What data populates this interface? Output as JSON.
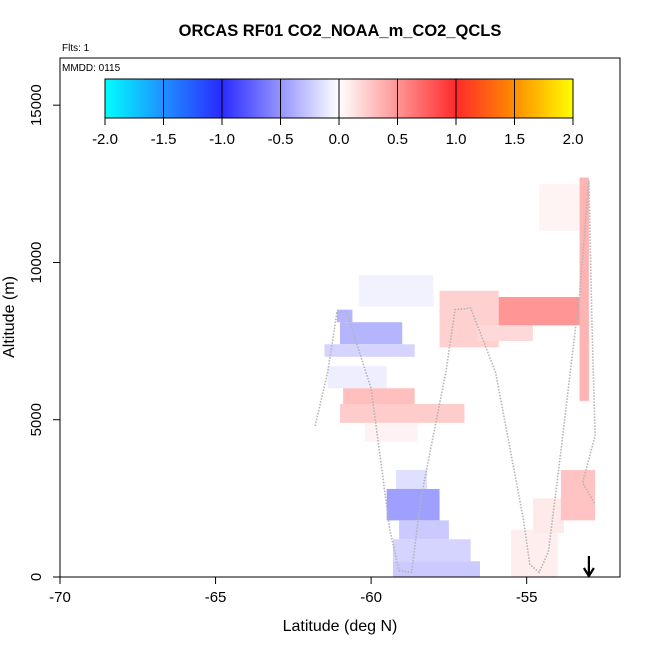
{
  "chart_data": {
    "type": "heatmap",
    "title": "ORCAS RF01 CO2_NOAA_m_CO2_QCLS",
    "annotations": [
      "Flts: 1",
      "MMDD: 0115"
    ],
    "xlabel": "Latitude (deg N)",
    "ylabel": "Altitude (m)",
    "xlim": [
      -70,
      -52
    ],
    "ylim": [
      0,
      16500
    ],
    "x_ticks": [
      -70,
      -65,
      -60,
      -55
    ],
    "x_tick_labels": [
      "-70",
      "-65",
      "-60",
      "-55"
    ],
    "y_ticks": [
      0,
      5000,
      10000,
      15000
    ],
    "y_tick_labels": [
      "0",
      "5000",
      "10000",
      "15000"
    ],
    "colorbar": {
      "range": [
        -2.0,
        2.0
      ],
      "tick_values": [
        -2.0,
        -1.5,
        -1.0,
        -0.5,
        0.0,
        0.5,
        1.0,
        1.5,
        2.0
      ],
      "tick_labels": [
        "-2.0",
        "-1.5",
        "-1.0",
        "-0.5",
        "0.0",
        "0.5",
        "1.0",
        "1.5",
        "2.0"
      ],
      "colors": [
        "#00ffff",
        "#1e90ff",
        "#2a2aff",
        "#ffffff",
        "#ff2a2a",
        "#ff8c00",
        "#ffff00"
      ],
      "placement": "top"
    },
    "flight_track_color": "#b4b4b4",
    "flight_track": [
      [
        -61.8,
        4800
      ],
      [
        -61.4,
        6500
      ],
      [
        -61.1,
        8400
      ],
      [
        -60.8,
        8450
      ],
      [
        -60.0,
        6000
      ],
      [
        -59.4,
        1500
      ],
      [
        -59.1,
        200
      ],
      [
        -58.7,
        150
      ],
      [
        -58.4,
        2500
      ],
      [
        -57.6,
        6500
      ],
      [
        -57.3,
        8500
      ],
      [
        -56.8,
        8550
      ],
      [
        -56.0,
        6500
      ],
      [
        -55.1,
        1800
      ],
      [
        -54.9,
        400
      ],
      [
        -54.6,
        150
      ],
      [
        -54.3,
        800
      ],
      [
        -53.9,
        4000
      ],
      [
        -53.3,
        9000
      ],
      [
        -53.0,
        12600
      ],
      [
        -52.9,
        8000
      ],
      [
        -52.8,
        4500
      ],
      [
        -53.2,
        3000
      ],
      [
        -52.8,
        2300
      ]
    ],
    "cells": [
      {
        "lat": [
          -57.8,
          -55.9
        ],
        "alt": [
          7300,
          9100
        ],
        "value": 0.22
      },
      {
        "lat": [
          -55.9,
          -53.2
        ],
        "alt": [
          8000,
          8900
        ],
        "value": 0.5
      },
      {
        "lat": [
          -56.6,
          -54.8
        ],
        "alt": [
          7500,
          8000
        ],
        "value": 0.18
      },
      {
        "lat": [
          -53.3,
          -53.0
        ],
        "alt": [
          5600,
          12700
        ],
        "value": 0.35
      },
      {
        "lat": [
          -54.6,
          -53.3
        ],
        "alt": [
          11000,
          12500
        ],
        "value": 0.05
      },
      {
        "lat": [
          -61.1,
          -60.6
        ],
        "alt": [
          8100,
          8500
        ],
        "value": -0.35
      },
      {
        "lat": [
          -61.0,
          -59.0
        ],
        "alt": [
          7400,
          8100
        ],
        "value": -0.35
      },
      {
        "lat": [
          -61.5,
          -58.6
        ],
        "alt": [
          7000,
          7400
        ],
        "value": -0.2
      },
      {
        "lat": [
          -60.4,
          -58.0
        ],
        "alt": [
          8600,
          9600
        ],
        "value": -0.06
      },
      {
        "lat": [
          -61.4,
          -59.5
        ],
        "alt": [
          6000,
          6700
        ],
        "value": -0.08
      },
      {
        "lat": [
          -60.9,
          -58.6
        ],
        "alt": [
          5500,
          6000
        ],
        "value": 0.3
      },
      {
        "lat": [
          -61.0,
          -57.0
        ],
        "alt": [
          4900,
          5500
        ],
        "value": 0.24
      },
      {
        "lat": [
          -60.2,
          -58.5
        ],
        "alt": [
          4300,
          4900
        ],
        "value": 0.06
      },
      {
        "lat": [
          -59.2,
          -58.2
        ],
        "alt": [
          2800,
          3400
        ],
        "value": -0.15
      },
      {
        "lat": [
          -59.5,
          -57.8
        ],
        "alt": [
          1800,
          2800
        ],
        "value": -0.45
      },
      {
        "lat": [
          -59.1,
          -57.5
        ],
        "alt": [
          1200,
          1800
        ],
        "value": -0.25
      },
      {
        "lat": [
          -59.3,
          -56.8
        ],
        "alt": [
          500,
          1200
        ],
        "value": -0.2
      },
      {
        "lat": [
          -59.3,
          -56.5
        ],
        "alt": [
          0,
          500
        ],
        "value": -0.25
      },
      {
        "lat": [
          -55.5,
          -54.0
        ],
        "alt": [
          0,
          1500
        ],
        "value": 0.08
      },
      {
        "lat": [
          -54.8,
          -53.8
        ],
        "alt": [
          1400,
          2500
        ],
        "value": 0.1
      },
      {
        "lat": [
          -53.9,
          -52.8
        ],
        "alt": [
          1800,
          3400
        ],
        "value": 0.28
      }
    ],
    "latest_point_marker": {
      "lat": -53.0,
      "shape": "down-arrow"
    }
  }
}
